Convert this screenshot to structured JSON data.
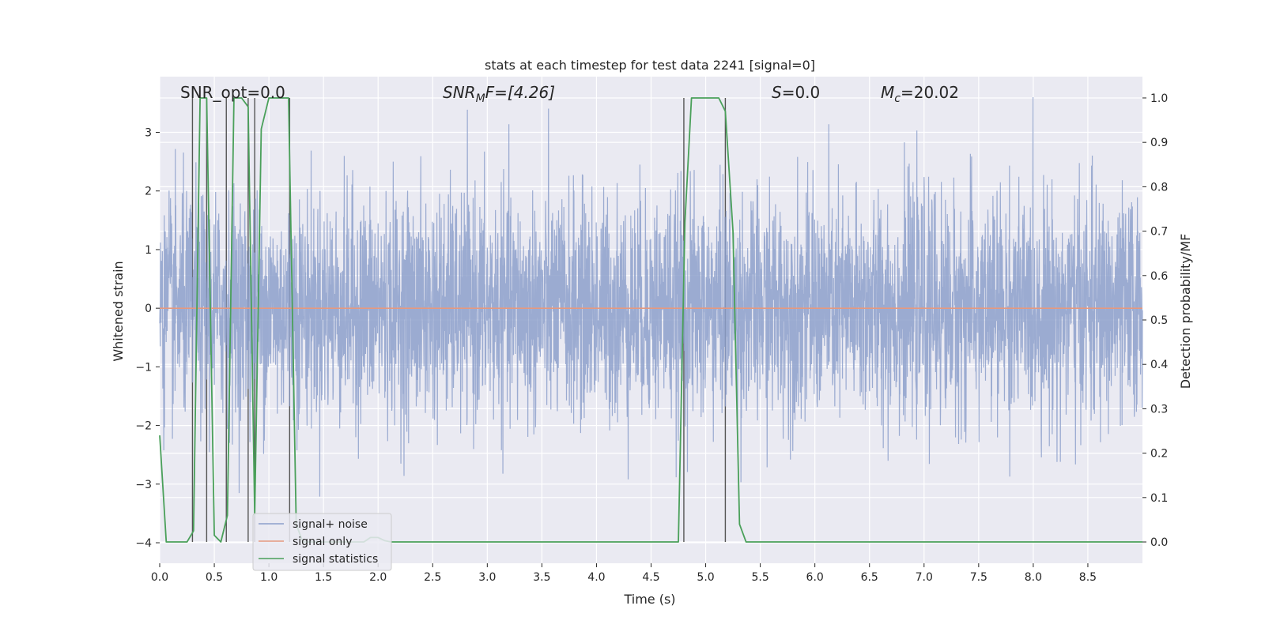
{
  "chart_data": {
    "type": "line",
    "title": "stats at each timestep for test data 2241 [signal=0]",
    "xlabel": "Time (s)",
    "ylabel": "Whitened strain",
    "y2label": "Detection probability/MF",
    "xlim": [
      0.0,
      9.0
    ],
    "ylim": [
      -4.35,
      3.95
    ],
    "y2lim": [
      -0.048,
      1.048
    ],
    "x_ticks": [
      0.0,
      0.5,
      1.0,
      1.5,
      2.0,
      2.5,
      3.0,
      3.5,
      4.0,
      4.5,
      5.0,
      5.5,
      6.0,
      6.5,
      7.0,
      7.5,
      8.0,
      8.5
    ],
    "x_tick_labels": [
      "0.0",
      "0.5",
      "1.0",
      "1.5",
      "2.0",
      "2.5",
      "3.0",
      "3.5",
      "4.0",
      "4.5",
      "5.0",
      "5.5",
      "6.0",
      "6.5",
      "7.0",
      "7.5",
      "8.0",
      "8.5"
    ],
    "y_ticks": [
      -4,
      -3,
      -2,
      -1,
      0,
      1,
      2,
      3
    ],
    "y_tick_labels": [
      "−4",
      "−3",
      "−2",
      "−1",
      "0",
      "1",
      "2",
      "3"
    ],
    "y2_ticks": [
      0.0,
      0.1,
      0.2,
      0.3,
      0.4,
      0.5,
      0.6,
      0.7,
      0.8,
      0.9,
      1.0
    ],
    "y2_tick_labels": [
      "0.0",
      "0.1",
      "0.2",
      "0.3",
      "0.4",
      "0.5",
      "0.6",
      "0.7",
      "0.8",
      "0.9",
      "1.0"
    ],
    "grid": true,
    "legend_position": "bottom-left",
    "annotations": {
      "snr_opt": "SNR_opt=0.0",
      "snr_mf_base": "SNR",
      "snr_mf_sub": "M",
      "snr_mf_tail": "F=[4.26]",
      "s_italic": "S",
      "s_value": "=0.0",
      "mc_base": "M",
      "mc_sub": "c",
      "mc_value": "=20.02"
    },
    "series": [
      {
        "name": "signal+ noise",
        "color": "#8da0cb",
        "axis": "left",
        "noise": {
          "std": 0.95,
          "range": [
            -4.0,
            3.6
          ],
          "n_samples": 4096
        }
      },
      {
        "name": "signal only",
        "color": "#e5997f",
        "axis": "left",
        "x": [
          0.0,
          9.0
        ],
        "y": [
          0.0,
          0.0
        ]
      },
      {
        "name": "signal statistics",
        "color": "#4aa05a",
        "axis": "right",
        "x": [
          0.0,
          0.06,
          0.12,
          0.18,
          0.25,
          0.31,
          0.37,
          0.43,
          0.5,
          0.56,
          0.62,
          0.68,
          0.75,
          0.81,
          0.87,
          0.93,
          1.0,
          1.06,
          1.12,
          1.18,
          1.25,
          1.31,
          1.37,
          1.43,
          1.5,
          1.56,
          1.62,
          1.68,
          1.75,
          1.81,
          1.87,
          1.93,
          2.0,
          2.06,
          2.12,
          2.5,
          3.0,
          3.5,
          4.0,
          4.5,
          4.75,
          4.81,
          4.87,
          4.93,
          5.0,
          5.06,
          5.12,
          5.18,
          5.25,
          5.31,
          5.37,
          5.43,
          5.5,
          5.56,
          5.62,
          6.0,
          6.5,
          7.0,
          7.5,
          8.0,
          8.5,
          9.0
        ],
        "y": [
          0.24,
          0.0,
          0.0,
          0.0,
          0.0,
          0.025,
          1.0,
          1.0,
          0.015,
          0.0,
          0.06,
          1.0,
          1.0,
          0.98,
          0.06,
          0.93,
          1.0,
          1.0,
          1.0,
          1.0,
          0.04,
          0.0,
          0.0,
          0.0,
          0.0,
          0.0,
          0.0,
          0.0,
          0.0,
          0.0,
          0.0,
          0.01,
          0.01,
          0.003,
          0.0,
          0.0,
          0.0,
          0.0,
          0.0,
          0.0,
          0.0,
          0.72,
          1.0,
          1.0,
          1.0,
          1.0,
          1.0,
          0.97,
          0.7,
          0.04,
          0.0,
          0.0,
          0.0,
          0.0,
          0.0,
          0.0,
          0.0,
          0.0,
          0.0,
          0.0,
          0.0,
          0.0
        ]
      }
    ],
    "vertical_lines_x": [
      0.3,
      0.43,
      0.61,
      0.81,
      0.87,
      1.19,
      4.8,
      5.18
    ]
  }
}
